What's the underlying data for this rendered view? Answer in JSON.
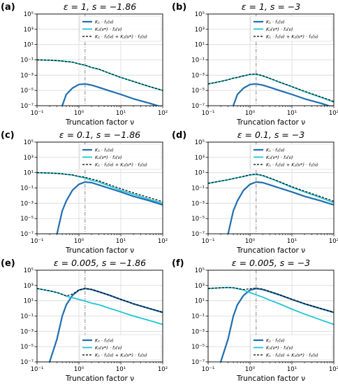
{
  "figure": {
    "xlabel": "Truncation factor ν",
    "x_ticks": [
      "10⁻¹",
      "10⁰",
      "10¹",
      "10²"
    ],
    "y_ticks": [
      "10⁻⁷",
      "10⁻⁵",
      "10⁻³",
      "10⁻¹",
      "10¹",
      "10³",
      "10⁵"
    ]
  },
  "colors": {
    "k1": "#1f6fb0",
    "k2": "#22c4d4",
    "sum": "#000000",
    "vline": "#888888",
    "grid": "#d9d9d9"
  },
  "legend_labels": [
    "K₁ · f₁(ν)",
    "K₂(ν*) · f₂(ν)",
    "K₁ · f₁(ν) + K₂(ν*) · f₂(ν)"
  ],
  "chart_data": [
    {
      "panel": "(a)",
      "title": "ε = 1, s = −1.86",
      "type": "line",
      "xscale": "log",
      "yscale": "log",
      "xlim": [
        0.1,
        100
      ],
      "ylim": [
        1e-07,
        100000
      ],
      "grid": true,
      "legend": "top-right",
      "vline_x": 1.4,
      "x": [
        0.1,
        0.2,
        0.3,
        0.4,
        0.5,
        0.7,
        1,
        1.4,
        2,
        3,
        5,
        10,
        20,
        50,
        100
      ],
      "series": [
        {
          "name": "K₁ · f₁(ν)",
          "key": "k1",
          "values": [
            null,
            null,
            null,
            1e-07,
            3e-06,
            2e-05,
            6e-05,
            7e-05,
            5e-05,
            2.5e-05,
            1e-05,
            3e-06,
            8e-07,
            2e-07,
            6e-08
          ]
        },
        {
          "name": "K₂(ν*) · f₂(ν)",
          "key": "k2",
          "values": [
            0.1,
            0.09,
            0.08,
            0.07,
            0.06,
            0.05,
            0.03,
            0.02,
            0.01,
            0.006,
            0.002,
            0.0005,
            0.00015,
            3e-05,
            1e-05
          ]
        },
        {
          "name": "K₁ · f₁(ν) + K₂(ν*) · f₂(ν)",
          "key": "sum",
          "values": [
            0.1,
            0.09,
            0.08,
            0.07,
            0.06,
            0.05,
            0.03,
            0.02,
            0.01,
            0.006,
            0.002,
            0.0005,
            0.00015,
            3e-05,
            1e-05
          ]
        }
      ]
    },
    {
      "panel": "(b)",
      "title": "ε = 1, s = −3",
      "type": "line",
      "xscale": "log",
      "yscale": "log",
      "xlim": [
        0.1,
        100
      ],
      "ylim": [
        1e-07,
        100000
      ],
      "grid": true,
      "legend": "top-right",
      "vline_x": 1.4,
      "x": [
        0.1,
        0.2,
        0.3,
        0.4,
        0.5,
        0.7,
        1,
        1.4,
        2,
        3,
        5,
        10,
        20,
        50,
        100
      ],
      "series": [
        {
          "name": "K₁ · f₁(ν)",
          "key": "k1",
          "values": [
            null,
            null,
            null,
            1e-07,
            3e-06,
            2e-05,
            6e-05,
            7e-05,
            5e-05,
            2.5e-05,
            1e-05,
            3e-06,
            8e-07,
            2e-07,
            6e-08
          ]
        },
        {
          "name": "K₂(ν*) · f₂(ν)",
          "key": "k2",
          "values": [
            7e-05,
            0.00015,
            0.00025,
            0.0004,
            0.0005,
            0.0008,
            0.0012,
            0.0013,
            0.0008,
            0.00035,
            0.00012,
            3e-05,
            7e-06,
            1.2e-06,
            3e-07
          ]
        },
        {
          "name": "K₁ · f₁(ν) + K₂(ν*) · f₂(ν)",
          "key": "sum",
          "values": [
            7e-05,
            0.00015,
            0.00025,
            0.0004,
            0.0005,
            0.0008,
            0.0013,
            0.0014,
            0.00085,
            0.00038,
            0.00013,
            3.3e-05,
            7.8e-06,
            1.4e-06,
            3.6e-07
          ]
        }
      ]
    },
    {
      "panel": "(c)",
      "title": "ε = 0.1, s = −1.86",
      "type": "line",
      "xscale": "log",
      "yscale": "log",
      "xlim": [
        0.1,
        100
      ],
      "ylim": [
        1e-07,
        100000
      ],
      "grid": true,
      "legend": "top-right",
      "vline_x": 1.4,
      "x": [
        0.1,
        0.2,
        0.3,
        0.4,
        0.5,
        0.7,
        1,
        1.4,
        2,
        3,
        5,
        10,
        20,
        50,
        100
      ],
      "series": [
        {
          "name": "K₁ · f₁(ν)",
          "key": "k1",
          "values": [
            null,
            null,
            1e-07,
            0.0001,
            0.002,
            0.05,
            0.3,
            0.6,
            0.5,
            0.25,
            0.1,
            0.03,
            0.008,
            0.002,
            0.0006
          ]
        },
        {
          "name": "K₂(ν*) · f₂(ν)",
          "key": "k2",
          "values": [
            10,
            9,
            8,
            7,
            6,
            5,
            3,
            2,
            1,
            0.6,
            0.2,
            0.05,
            0.015,
            0.003,
            0.001
          ]
        },
        {
          "name": "K₁ · f₁(ν) + K₂(ν*) · f₂(ν)",
          "key": "sum",
          "values": [
            10,
            9,
            8,
            7,
            6,
            5,
            3.3,
            2.6,
            1.5,
            0.85,
            0.3,
            0.08,
            0.023,
            0.005,
            0.0016
          ]
        }
      ]
    },
    {
      "panel": "(d)",
      "title": "ε = 0.1, s = −3",
      "type": "line",
      "xscale": "log",
      "yscale": "log",
      "xlim": [
        0.1,
        100
      ],
      "ylim": [
        1e-07,
        100000
      ],
      "grid": true,
      "legend": "top-right",
      "vline_x": 1.4,
      "x": [
        0.1,
        0.2,
        0.3,
        0.4,
        0.5,
        0.7,
        1,
        1.4,
        2,
        3,
        5,
        10,
        20,
        50,
        100
      ],
      "series": [
        {
          "name": "K₁ · f₁(ν)",
          "key": "k1",
          "values": [
            null,
            null,
            1e-07,
            0.0001,
            0.002,
            0.05,
            0.3,
            0.6,
            0.5,
            0.25,
            0.1,
            0.03,
            0.008,
            0.002,
            0.0006
          ]
        },
        {
          "name": "K₂(ν*) · f₂(ν)",
          "key": "k2",
          "values": [
            0.4,
            0.8,
            1.2,
            1.7,
            2.2,
            3.2,
            5,
            6,
            4,
            1.8,
            0.6,
            0.12,
            0.03,
            0.005,
            0.0012
          ]
        },
        {
          "name": "K₁ · f₁(ν) + K₂(ν*) · f₂(ν)",
          "key": "sum",
          "values": [
            0.4,
            0.8,
            1.2,
            1.7,
            2.2,
            3.3,
            5.3,
            6.6,
            4.5,
            2,
            0.7,
            0.15,
            0.038,
            0.007,
            0.0018
          ]
        }
      ]
    },
    {
      "panel": "(e)",
      "title": "ε = 0.005, s = −1.86",
      "type": "line",
      "xscale": "log",
      "yscale": "log",
      "xlim": [
        0.1,
        100
      ],
      "ylim": [
        1e-07,
        100000
      ],
      "grid": true,
      "legend": "bottom-right",
      "vline_x": 1.4,
      "x": [
        0.1,
        0.2,
        0.3,
        0.4,
        0.5,
        0.7,
        1,
        1.4,
        2,
        3,
        5,
        10,
        20,
        50,
        100
      ],
      "series": [
        {
          "name": "K₁ · f₁(ν)",
          "key": "k1",
          "values": [
            null,
            1e-07,
            0.0001,
            0.1,
            3,
            50,
            250,
            400,
            300,
            150,
            60,
            15,
            4,
            0.9,
            0.3
          ]
        },
        {
          "name": "K₂(ν*) · f₂(ν)",
          "key": "k2",
          "values": [
            400,
            200,
            120,
            70,
            40,
            25,
            15,
            9,
            5,
            3,
            1.2,
            0.35,
            0.1,
            0.025,
            0.008
          ]
        },
        {
          "name": "K₁ · f₁(ν) + K₂(ν*) · f₂(ν)",
          "key": "sum",
          "values": [
            400,
            200,
            120,
            70,
            43,
            75,
            265,
            409,
            305,
            153,
            61,
            15.4,
            4.1,
            0.93,
            0.31
          ]
        }
      ]
    },
    {
      "panel": "(f)",
      "title": "ε = 0.005, s = −3",
      "type": "line",
      "xscale": "log",
      "yscale": "log",
      "xlim": [
        0.1,
        100
      ],
      "ylim": [
        1e-07,
        100000
      ],
      "grid": true,
      "legend": "bottom-right",
      "vline_x": 1.4,
      "x": [
        0.1,
        0.2,
        0.3,
        0.4,
        0.5,
        0.7,
        1,
        1.4,
        2,
        3,
        5,
        10,
        20,
        50,
        100
      ],
      "series": [
        {
          "name": "K₁ · f₁(ν)",
          "key": "k1",
          "values": [
            null,
            1e-07,
            0.0001,
            0.1,
            3,
            50,
            250,
            400,
            300,
            150,
            60,
            15,
            4,
            0.9,
            0.3
          ]
        },
        {
          "name": "K₂(ν*) · f₂(ν)",
          "key": "k2",
          "values": [
            400,
            500,
            550,
            500,
            400,
            250,
            120,
            60,
            30,
            12,
            4,
            0.8,
            0.18,
            0.03,
            0.008
          ]
        },
        {
          "name": "K₁ · f₁(ν) + K₂(ν*) · f₂(ν)",
          "key": "sum",
          "values": [
            400,
            500,
            550,
            500,
            403,
            300,
            370,
            460,
            330,
            162,
            64,
            15.8,
            4.2,
            0.93,
            0.31
          ]
        }
      ]
    }
  ]
}
